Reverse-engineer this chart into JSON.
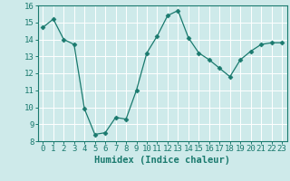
{
  "x": [
    0,
    1,
    2,
    3,
    4,
    5,
    6,
    7,
    8,
    9,
    10,
    11,
    12,
    13,
    14,
    15,
    16,
    17,
    18,
    19,
    20,
    21,
    22,
    23
  ],
  "y": [
    14.7,
    15.2,
    14.0,
    13.7,
    9.9,
    8.4,
    8.5,
    9.4,
    9.3,
    11.0,
    13.2,
    14.2,
    15.4,
    15.7,
    14.1,
    13.2,
    12.8,
    12.3,
    11.8,
    12.8,
    13.3,
    13.7,
    13.8,
    13.8
  ],
  "line_color": "#1a7a6e",
  "marker": "D",
  "marker_size": 2.5,
  "xlabel": "Humidex (Indice chaleur)",
  "xlim": [
    -0.5,
    23.5
  ],
  "ylim": [
    8,
    16
  ],
  "yticks": [
    8,
    9,
    10,
    11,
    12,
    13,
    14,
    15,
    16
  ],
  "xticks": [
    0,
    1,
    2,
    3,
    4,
    5,
    6,
    7,
    8,
    9,
    10,
    11,
    12,
    13,
    14,
    15,
    16,
    17,
    18,
    19,
    20,
    21,
    22,
    23
  ],
  "xtick_labels": [
    "0",
    "1",
    "2",
    "3",
    "4",
    "5",
    "6",
    "7",
    "8",
    "9",
    "10",
    "11",
    "12",
    "13",
    "14",
    "15",
    "16",
    "17",
    "18",
    "19",
    "20",
    "21",
    "22",
    "23"
  ],
  "background_color": "#ceeaea",
  "grid_color": "#ffffff",
  "font_color": "#1a7a6e",
  "tick_fontsize": 6.5,
  "xlabel_fontsize": 7.5
}
